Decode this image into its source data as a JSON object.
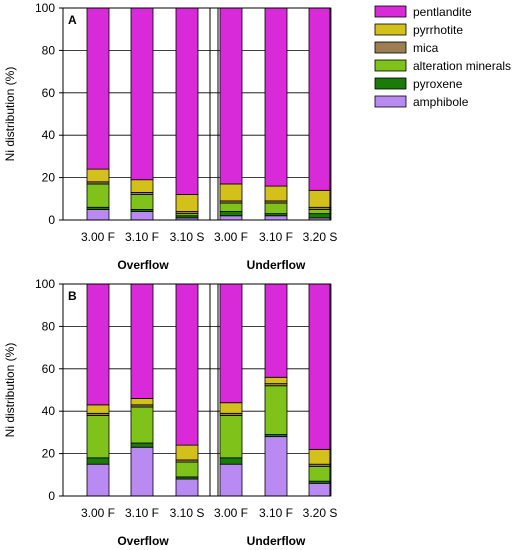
{
  "chart_data": [
    {
      "type": "bar",
      "stacked": true,
      "panel": "A",
      "ylabel": "Ni distribution (%)",
      "ylim": [
        0,
        100
      ],
      "yticks": [
        0,
        20,
        40,
        60,
        80,
        100
      ],
      "categories": [
        "3.00 F",
        "3.10 F",
        "3.10 S",
        "3.00 F",
        "3.10 F",
        "3.20 S"
      ],
      "groups": [
        {
          "label": "Overflow",
          "categories": [
            0,
            1,
            2
          ]
        },
        {
          "label": "Underflow",
          "categories": [
            3,
            4,
            5
          ]
        }
      ],
      "series": [
        {
          "name": "amphibole",
          "color": "#b98af2",
          "values": [
            5,
            4,
            1,
            2,
            2,
            1
          ]
        },
        {
          "name": "pyroxene",
          "color": "#1a7a0a",
          "values": [
            1,
            1,
            1,
            2,
            1,
            2
          ]
        },
        {
          "name": "alteration minerals",
          "color": "#7ec21a",
          "values": [
            11,
            7,
            1,
            4,
            5,
            2
          ]
        },
        {
          "name": "mica",
          "color": "#9c7e52",
          "values": [
            1,
            1,
            1,
            1,
            1,
            1
          ]
        },
        {
          "name": "pyrrhotite",
          "color": "#d4c01a",
          "values": [
            6,
            6,
            8,
            8,
            7,
            8
          ]
        },
        {
          "name": "pentlandite",
          "color": "#d82ad8",
          "values": [
            76,
            81,
            88,
            83,
            84,
            86
          ]
        }
      ]
    },
    {
      "type": "bar",
      "stacked": true,
      "panel": "B",
      "ylabel": "Ni distribution (%)",
      "ylim": [
        0,
        100
      ],
      "yticks": [
        0,
        20,
        40,
        60,
        80,
        100
      ],
      "categories": [
        "3.00 F",
        "3.10 F",
        "3.10 S",
        "3.00 F",
        "3.10 F",
        "3.20 S"
      ],
      "groups": [
        {
          "label": "Overflow",
          "categories": [
            0,
            1,
            2
          ]
        },
        {
          "label": "Underflow",
          "categories": [
            3,
            4,
            5
          ]
        }
      ],
      "series": [
        {
          "name": "amphibole",
          "color": "#b98af2",
          "values": [
            15,
            23,
            8,
            15,
            28,
            6
          ]
        },
        {
          "name": "pyroxene",
          "color": "#1a7a0a",
          "values": [
            3,
            2,
            1,
            3,
            1,
            1
          ]
        },
        {
          "name": "alteration minerals",
          "color": "#7ec21a",
          "values": [
            20,
            17,
            7,
            20,
            23,
            7
          ]
        },
        {
          "name": "mica",
          "color": "#9c7e52",
          "values": [
            1,
            1,
            1,
            1,
            1,
            1
          ]
        },
        {
          "name": "pyrrhotite",
          "color": "#d4c01a",
          "values": [
            4,
            3,
            7,
            5,
            3,
            7
          ]
        },
        {
          "name": "pentlandite",
          "color": "#d82ad8",
          "values": [
            57,
            54,
            76,
            56,
            44,
            78
          ]
        }
      ]
    }
  ],
  "legend": {
    "placement": "top-right",
    "order": [
      "pentlandite",
      "pyrrhotite",
      "mica",
      "alteration minerals",
      "pyroxene",
      "amphibole"
    ]
  }
}
